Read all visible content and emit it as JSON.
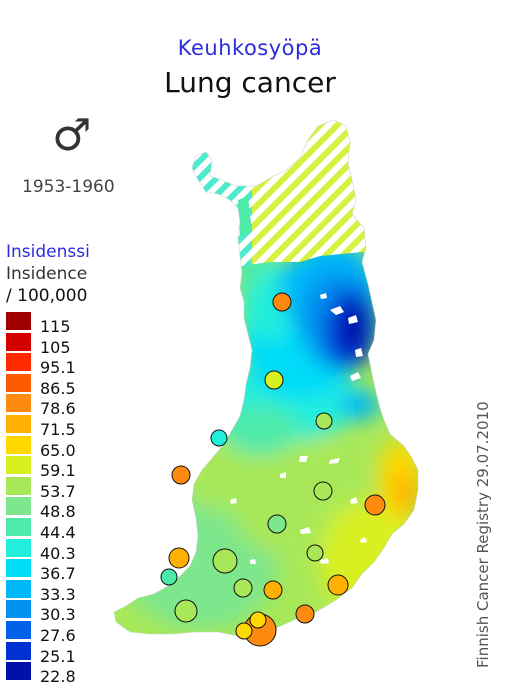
{
  "title": {
    "finnish": "Keuhkosyöpä",
    "english": "Lung cancer"
  },
  "sex_symbol": "♂",
  "sex_icon": "male-symbol-icon",
  "period": "1953-1960",
  "legend": {
    "title_finnish": "Insidenssi",
    "title_english": "Insidence",
    "unit": "/ 100,000",
    "classes": [
      {
        "label": "115",
        "color": "#a00000"
      },
      {
        "label": "105",
        "color": "#d40000"
      },
      {
        "label": "95.1",
        "color": "#ff2a00"
      },
      {
        "label": "86.5",
        "color": "#ff5a00"
      },
      {
        "label": "78.6",
        "color": "#ff8a10"
      },
      {
        "label": "71.5",
        "color": "#ffb000"
      },
      {
        "label": "65.0",
        "color": "#ffd800"
      },
      {
        "label": "59.1",
        "color": "#d8f020"
      },
      {
        "label": "53.7",
        "color": "#a8e858"
      },
      {
        "label": "48.8",
        "color": "#7ee68c"
      },
      {
        "label": "44.4",
        "color": "#4eeaaa"
      },
      {
        "label": "40.3",
        "color": "#22eedc"
      },
      {
        "label": "36.7",
        "color": "#00dcf8"
      },
      {
        "label": "33.3",
        "color": "#00b8f8"
      },
      {
        "label": "30.3",
        "color": "#0090f0"
      },
      {
        "label": "27.6",
        "color": "#0060e8"
      },
      {
        "label": "25.1",
        "color": "#0030d0"
      },
      {
        "label": "22.8",
        "color": "#0010a8"
      }
    ]
  },
  "registry_note": "Finnish Cancer Registry 29.07.2010",
  "colors": {
    "title_blue": "#2b2bdf",
    "no_data_hatch": "#d8f040"
  }
}
